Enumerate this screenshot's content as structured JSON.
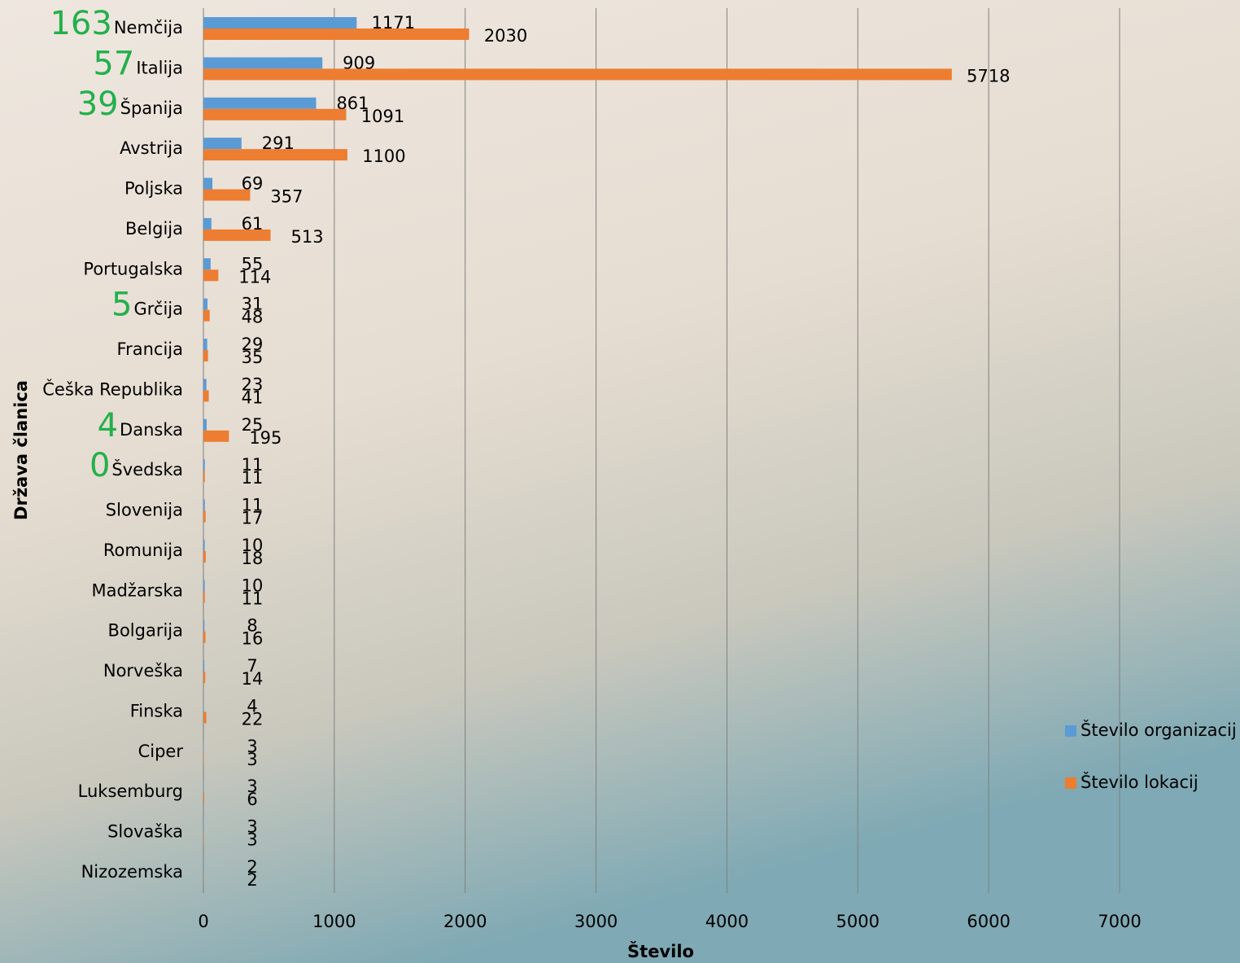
{
  "chart_data": {
    "type": "bar",
    "orientation": "horizontal",
    "x_label": "Število",
    "y_label": "Država članica",
    "categories": [
      "Nemčija",
      "Italija",
      "Španija",
      "Avstrija",
      "Poljska",
      "Belgija",
      "Portugalska",
      "Grčija",
      "Francija",
      "Češka Republika",
      "Danska",
      "Švedska",
      "Slovenija",
      "Romunija",
      "Madžarska",
      "Bolgarija",
      "Norveška",
      "Finska",
      "Ciper",
      "Luksemburg",
      "Slovaška",
      "Nizozemska"
    ],
    "series": [
      {
        "name": "Število organizacij",
        "color": "#5b9bd5",
        "values": [
          1171,
          909,
          861,
          291,
          69,
          61,
          55,
          31,
          29,
          23,
          25,
          11,
          11,
          10,
          10,
          8,
          7,
          4,
          3,
          3,
          3,
          2
        ]
      },
      {
        "name": "Število lokacij",
        "color": "#ed7d31",
        "values": [
          2030,
          5718,
          1091,
          1100,
          357,
          513,
          114,
          48,
          35,
          41,
          195,
          11,
          17,
          18,
          11,
          16,
          14,
          22,
          3,
          6,
          3,
          2
        ]
      }
    ],
    "side_labels": [
      163,
      57,
      39,
      null,
      null,
      null,
      null,
      5,
      null,
      null,
      4,
      0,
      null,
      null,
      null,
      null,
      null,
      null,
      null,
      null,
      null,
      null
    ],
    "side_label_color": "#22b04b",
    "xlim": [
      0,
      7000
    ],
    "xticks": [
      0,
      1000,
      2000,
      3000,
      4000,
      5000,
      6000,
      7000
    ],
    "grid": true,
    "legend": "right"
  }
}
